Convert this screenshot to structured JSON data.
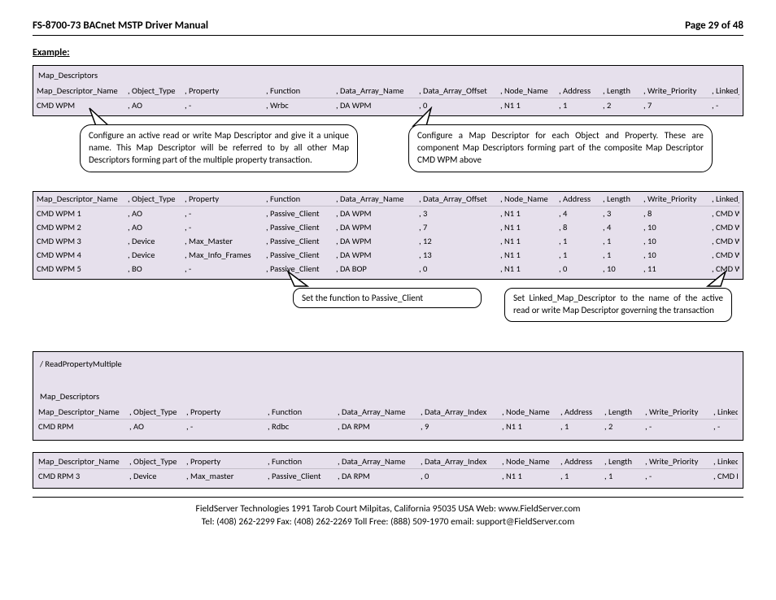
{
  "header": {
    "title": "FS-8700-73 BACnet MSTP Driver Manual",
    "page": "Page 29 of 48"
  },
  "example_label": "Example:",
  "table1": {
    "section": "Map_Descriptors",
    "headers": [
      "Map_Descriptor_Name",
      ", Object_Type",
      ", Property",
      ", Function",
      ", Data_Array_Name",
      ", Data_Array_Offset",
      ", Node_Name",
      ", Address",
      ", Length",
      ", Write_Priority",
      ", Linked_Map_Descriptor"
    ],
    "row": [
      "CMD WPM",
      ", AO",
      ", -",
      ", Wrbc",
      ", DA WPM",
      ", 0",
      ", N1 1",
      ", 1",
      ", 2",
      ", 7",
      ", -"
    ]
  },
  "callouts": {
    "a": "Configure an active read or write Map Descriptor and give it a unique name.  This Map Descriptor will be referred to by all other Map Descriptors forming part of the multiple property transaction.",
    "b": "Configure a Map Descriptor for each Object and Property.  These are component Map Descriptors forming part of the composite Map Descriptor CMD WPM above",
    "c": "Set the function to Passive_Client",
    "d": "Set Linked_Map_Descriptor to the name of the active read or write Map Descriptor governing the transaction"
  },
  "table2": {
    "headers": [
      "Map_Descriptor_Name",
      ", Object_Type",
      ", Property",
      ", Function",
      ", Data_Array_Name",
      ", Data_Array_Offset",
      ", Node_Name",
      ", Address",
      ", Length",
      ", Write_Priority",
      ", Linked_Map_Descriptor"
    ],
    "rows": [
      [
        "CMD WPM 1",
        ", AO",
        ", -",
        ", Passive_Client",
        ", DA WPM",
        ", 3",
        ", N1 1",
        ", 4",
        ", 3",
        ", 8",
        ", CMD WPM"
      ],
      [
        "CMD WPM 2",
        ", AO",
        ", -",
        ", Passive_Client",
        ", DA WPM",
        ", 7",
        ", N1 1",
        ", 8",
        ", 4",
        ", 10",
        ", CMD WPM"
      ],
      [
        "CMD WPM 3",
        ", Device",
        ", Max_Master",
        ", Passive_Client",
        ", DA WPM",
        ", 12",
        ", N1 1",
        ", 1",
        ", 1",
        ", 10",
        ", CMD WPM"
      ],
      [
        "CMD WPM 4",
        ", Device",
        ", Max_Info_Frames",
        ", Passive_Client",
        ", DA WPM",
        ", 13",
        ", N1 1",
        ", 1",
        ", 1",
        ", 10",
        ", CMD WPM"
      ],
      [
        "CMD WPM 5",
        ", BO",
        ", -",
        ", Passive_Client",
        ", DA BOP",
        ", 0",
        ", N1 1",
        ", 0",
        ", 10",
        ", 11",
        ", CMD WPM"
      ]
    ]
  },
  "table3": {
    "slash": "/ ReadPropertyMultiple",
    "section": "Map_Descriptors",
    "headers": [
      "Map_Descriptor_Name",
      ", Object_Type",
      ", Property",
      ", Function",
      ", Data_Array_Name",
      ", Data_Array_Index",
      ", Node_Name",
      ", Address",
      ", Length",
      ", Write_Priority",
      ", Linked_Map_Descriptor"
    ],
    "row": [
      "CMD RPM",
      ", AO",
      ", -",
      ", Rdbc",
      ", DA RPM",
      ", 9",
      ", N1 1",
      ", 1",
      ", 2",
      ", -",
      ", -"
    ]
  },
  "table4": {
    "headers": [
      "Map_Descriptor_Name",
      ", Object_Type",
      ", Property",
      ", Function",
      ", Data_Array_Name",
      ", Data_Array_Index",
      ", Node_Name",
      ", Address",
      ", Length",
      ", Write_Priority",
      ", Linked_Map_Descriptor"
    ],
    "row": [
      "CMD RPM 3",
      ", Device",
      ", Max_master",
      ", Passive_Client",
      ", DA RPM",
      ", 0",
      ", N1 1",
      ", 1",
      ", 1",
      ", -",
      ", CMD RPM"
    ]
  },
  "footer": {
    "l1": "FieldServer Technologies 1991 Tarob Court Milpitas, California 95035 USA   Web: www.FieldServer.com",
    "l2": "Tel: (408) 262-2299   Fax: (408) 262-2269   Toll Free: (888) 509-1970   email: support@FieldServer.com"
  }
}
